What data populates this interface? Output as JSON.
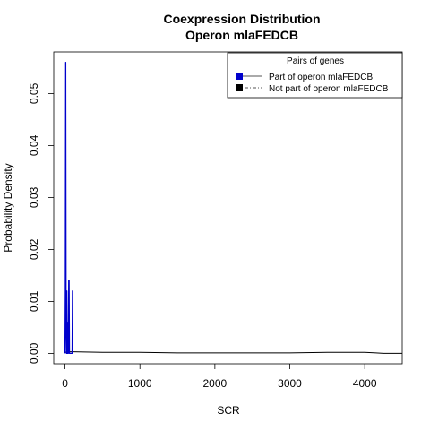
{
  "chart_data": {
    "type": "line",
    "title": "Coexpression Distribution",
    "subtitle": "Operon mlaFEDCB",
    "xlabel": "SCR",
    "ylabel": "Probability Density",
    "xlim": [
      -150,
      4500
    ],
    "ylim": [
      -0.002,
      0.058
    ],
    "x_ticks": [
      0,
      1000,
      2000,
      3000,
      4000
    ],
    "x_tick_labels": [
      "0",
      "1000",
      "2000",
      "3000",
      "4000"
    ],
    "y_ticks": [
      0.0,
      0.01,
      0.02,
      0.03,
      0.04,
      0.05
    ],
    "y_tick_labels": [
      "0.00",
      "0.01",
      "0.02",
      "0.03",
      "0.04",
      "0.05"
    ],
    "grid": false,
    "legend": {
      "title": "Pairs of genes",
      "position": "top-right",
      "entries": [
        {
          "label": "Part of operon mlaFEDCB",
          "color": "#0000cc",
          "line": "solid"
        },
        {
          "label": "Not part of operon mlaFEDCB",
          "color": "#000000",
          "line": "dashdot"
        }
      ]
    },
    "series": [
      {
        "name": "Part of operon mlaFEDCB",
        "color": "#0000cc",
        "x": [
          0,
          5,
          10,
          15,
          20,
          25,
          30,
          35,
          40,
          45,
          50,
          55,
          60,
          65,
          70,
          75,
          80,
          85,
          90,
          95,
          100,
          105
        ],
        "y": [
          0.0,
          0.012,
          0.056,
          0.005,
          0.0,
          0.012,
          0.0,
          0.0,
          0.006,
          0.0,
          0.014,
          0.014,
          0.0,
          0.0,
          0.0,
          0.0,
          0.0,
          0.0,
          0.0,
          0.0,
          0.012,
          0.0
        ]
      },
      {
        "name": "Not part of operon mlaFEDCB",
        "color": "#000000",
        "x": [
          0,
          50,
          100,
          500,
          1000,
          1500,
          2000,
          2500,
          3000,
          3500,
          4000,
          4150,
          4250,
          4350,
          4500
        ],
        "y": [
          0.0002,
          0.0003,
          0.0003,
          0.0002,
          0.0002,
          0.0001,
          0.0001,
          0.0001,
          0.0001,
          0.0002,
          0.0002,
          0.0001,
          0.0,
          0.0,
          0.0
        ]
      }
    ]
  }
}
